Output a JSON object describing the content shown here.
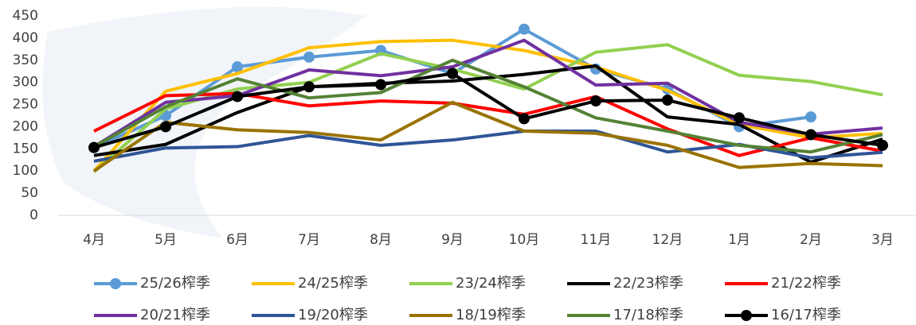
{
  "chart_data": {
    "type": "line",
    "categories": [
      "4月",
      "5月",
      "6月",
      "7月",
      "8月",
      "9月",
      "10月",
      "11月",
      "12月",
      "1月",
      "2月",
      "3月"
    ],
    "ylim": [
      0,
      450
    ],
    "yticks": [
      0,
      50,
      100,
      150,
      200,
      250,
      300,
      350,
      400,
      450
    ],
    "legend": "bottom",
    "series": [
      {
        "name": "25/26榨季",
        "color": "#5b9bd5",
        "marker": true,
        "values": [
          153,
          225,
          335,
          357,
          372,
          320,
          420,
          330,
          285,
          200,
          222,
          null
        ]
      },
      {
        "name": "24/25榨季",
        "color": "#ffc000",
        "marker": false,
        "values": [
          100,
          280,
          320,
          378,
          392,
          395,
          372,
          335,
          282,
          205,
          175,
          185
        ]
      },
      {
        "name": "23/24榨季",
        "color": "#92d050",
        "marker": false,
        "values": [
          98,
          240,
          285,
          300,
          365,
          330,
          285,
          368,
          385,
          316,
          302,
          272
        ]
      },
      {
        "name": "22/23榨季",
        "color": "#000000",
        "marker": false,
        "values": [
          135,
          160,
          232,
          290,
          298,
          303,
          318,
          337,
          222,
          205,
          120,
          172
        ]
      },
      {
        "name": "21/22榨季",
        "color": "#ff0000",
        "marker": false,
        "values": [
          190,
          270,
          275,
          247,
          258,
          253,
          228,
          268,
          195,
          135,
          175,
          145
        ]
      },
      {
        "name": "20/21榨季",
        "color": "#7030a0",
        "marker": false,
        "values": [
          155,
          255,
          270,
          328,
          315,
          335,
          395,
          294,
          298,
          210,
          183,
          197
        ]
      },
      {
        "name": "19/20榨季",
        "color": "#2f5597",
        "marker": false,
        "values": [
          122,
          152,
          155,
          180,
          158,
          170,
          190,
          190,
          143,
          160,
          130,
          142
        ]
      },
      {
        "name": "18/19榨季",
        "color": "#997300",
        "marker": false,
        "values": [
          100,
          210,
          193,
          187,
          170,
          255,
          190,
          185,
          158,
          108,
          117,
          112
        ]
      },
      {
        "name": "17/18榨季",
        "color": "#548235",
        "marker": false,
        "values": [
          155,
          245,
          308,
          265,
          277,
          350,
          290,
          220,
          190,
          158,
          143,
          182
        ]
      },
      {
        "name": "16/17榨季",
        "color": "#000000",
        "marker": true,
        "values": [
          153,
          200,
          268,
          290,
          295,
          320,
          218,
          258,
          260,
          220,
          182,
          158
        ]
      }
    ]
  }
}
